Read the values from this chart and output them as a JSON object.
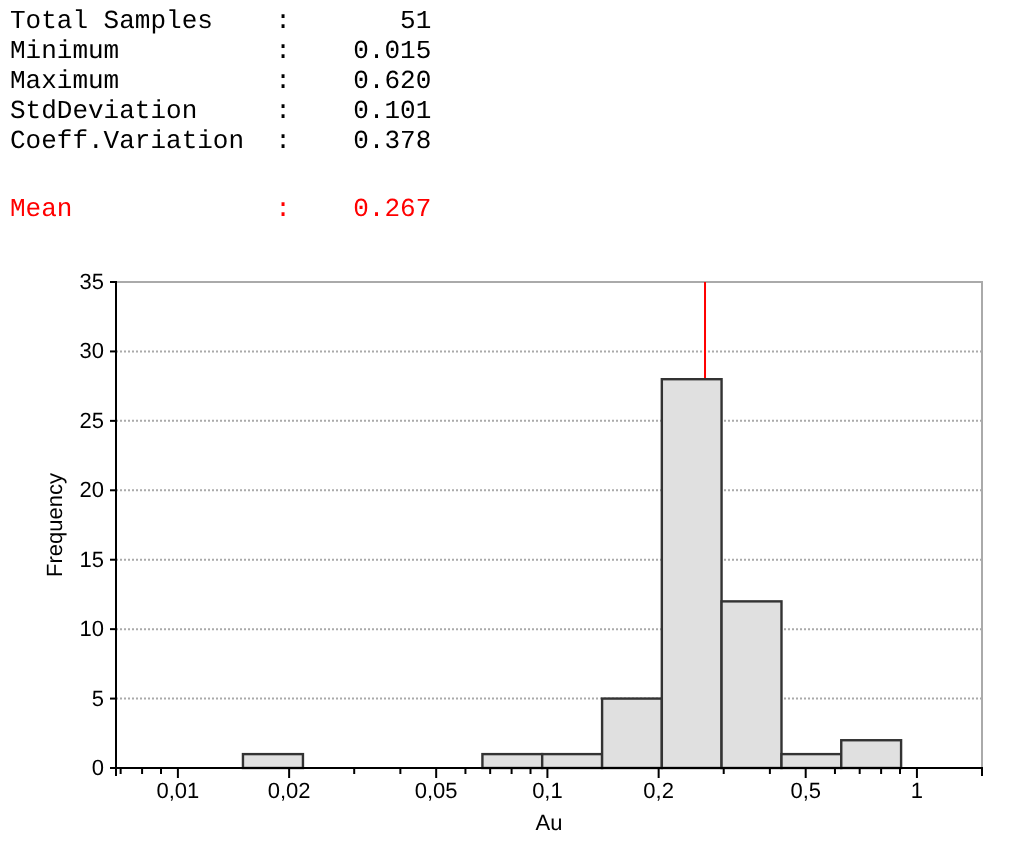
{
  "chart_data": {
    "type": "histogram",
    "xlabel": "Au",
    "ylabel": "Frequency",
    "annotations": [
      "Total Samples    :       51",
      "Minimum          :    0.015",
      "Maximum          :    0.620",
      "StdDeviation     :    0.101",
      "Coeff.Variation  :    0.378"
    ],
    "bins": [
      0.015,
      0.0218,
      0.0316,
      0.0459,
      0.0667,
      0.0968,
      0.1406,
      0.204,
      0.296,
      0.43,
      0.624,
      0.906
    ],
    "values": [
      1,
      0,
      0,
      0,
      1,
      1,
      5,
      28,
      12,
      1,
      2
    ],
    "color": "#e0e0e0",
    "log": "x",
    "xlim": [
      0.0068,
      1.5
    ],
    "xticks": [
      {
        "value": 0.007,
        "label": null
      },
      {
        "value": 0.008,
        "label": null
      },
      {
        "value": 0.009,
        "label": null
      },
      {
        "value": 0.01,
        "label": "0,01"
      },
      {
        "value": 0.02,
        "label": "0,02"
      },
      {
        "value": 0.03,
        "label": null
      },
      {
        "value": 0.04,
        "label": null
      },
      {
        "value": 0.05,
        "label": "0,05"
      },
      {
        "value": 0.06,
        "label": null
      },
      {
        "value": 0.07,
        "label": null
      },
      {
        "value": 0.08,
        "label": null
      },
      {
        "value": 0.09,
        "label": null
      },
      {
        "value": 0.1,
        "label": "0,1"
      },
      {
        "value": 0.2,
        "label": "0,2"
      },
      {
        "value": 0.3,
        "label": null
      },
      {
        "value": 0.4,
        "label": null
      },
      {
        "value": 0.5,
        "label": "0,5"
      },
      {
        "value": 0.6,
        "label": null
      },
      {
        "value": 0.7,
        "label": null
      },
      {
        "value": 0.8,
        "label": null
      },
      {
        "value": 0.9,
        "label": null
      },
      {
        "value": 1,
        "label": "1"
      }
    ],
    "ylim": [
      0,
      35
    ],
    "yticks": [
      0,
      5,
      10,
      15,
      20,
      25,
      30,
      35
    ],
    "grid": "y",
    "ref_lines": [
      {
        "axis": "x",
        "value": 0.267,
        "label": "Mean             :    0.267",
        "color": "#ff0000"
      }
    ]
  }
}
